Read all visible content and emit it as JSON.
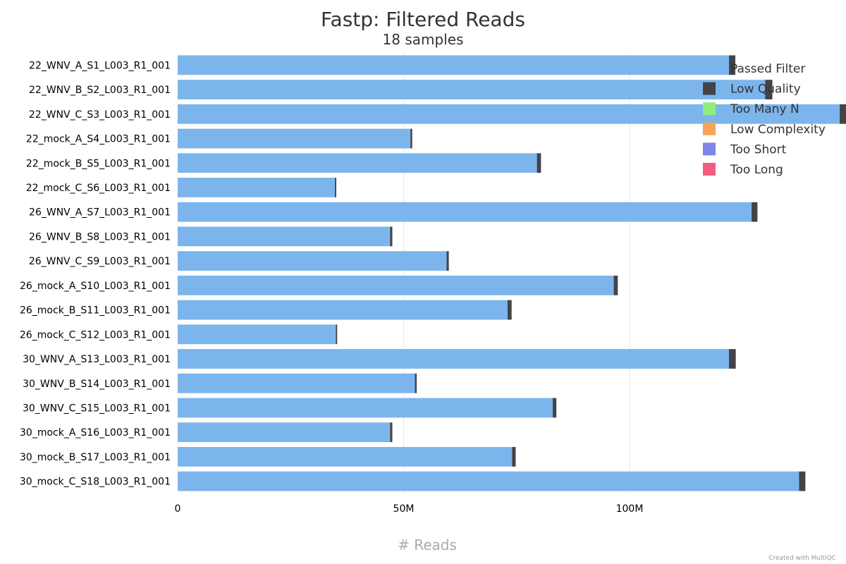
{
  "chart_data": {
    "type": "bar",
    "orientation": "horizontal",
    "stacked": true,
    "title": "Fastp: Filtered Reads",
    "subtitle": "18 samples",
    "xlabel": "# Reads",
    "ylabel": "",
    "xlim": [
      0,
      150000000
    ],
    "x_ticks": [
      {
        "value": 0,
        "label": "0"
      },
      {
        "value": 50000000,
        "label": "50M"
      },
      {
        "value": 100000000,
        "label": "100M"
      }
    ],
    "grid": true,
    "legend_position": "top-right",
    "categories": [
      "22_WNV_A_S1_L003_R1_001",
      "22_WNV_B_S2_L003_R1_001",
      "22_WNV_C_S3_L003_R1_001",
      "22_mock_A_S4_L003_R1_001",
      "22_mock_B_S5_L003_R1_001",
      "22_mock_C_S6_L003_R1_001",
      "26_WNV_A_S7_L003_R1_001",
      "26_WNV_B_S8_L003_R1_001",
      "26_WNV_C_S9_L003_R1_001",
      "26_mock_A_S10_L003_R1_001",
      "26_mock_B_S11_L003_R1_001",
      "26_mock_C_S12_L003_R1_001",
      "30_WNV_A_S13_L003_R1_001",
      "30_WNV_B_S14_L003_R1_001",
      "30_WNV_C_S15_L003_R1_001",
      "30_mock_A_S16_L003_R1_001",
      "30_mock_B_S17_L003_R1_001",
      "30_mock_C_S18_L003_R1_001"
    ],
    "series": [
      {
        "name": "Passed Filter",
        "color": "#7cb5ec",
        "values": [
          122000000,
          130000000,
          146500000,
          51500000,
          79500000,
          34800000,
          127000000,
          47000000,
          59500000,
          96500000,
          73000000,
          35000000,
          122000000,
          52500000,
          83000000,
          47000000,
          74000000,
          137500000
        ]
      },
      {
        "name": "Low Quality",
        "color": "#434348",
        "values": [
          1400000,
          1600000,
          1800000,
          400000,
          900000,
          300000,
          1300000,
          500000,
          500000,
          900000,
          900000,
          300000,
          1500000,
          400000,
          800000,
          500000,
          800000,
          1400000
        ]
      },
      {
        "name": "Too Many N",
        "color": "#90ed7d",
        "values": [
          0,
          0,
          0,
          0,
          0,
          0,
          0,
          0,
          0,
          0,
          0,
          0,
          0,
          0,
          0,
          0,
          0,
          0
        ]
      },
      {
        "name": "Low Complexity",
        "color": "#f7a35c",
        "values": [
          0,
          0,
          0,
          0,
          0,
          0,
          0,
          0,
          0,
          0,
          0,
          0,
          0,
          0,
          0,
          0,
          0,
          0
        ]
      },
      {
        "name": "Too Short",
        "color": "#8085e9",
        "values": [
          0,
          0,
          0,
          0,
          0,
          0,
          0,
          0,
          0,
          0,
          0,
          0,
          0,
          0,
          0,
          0,
          0,
          0
        ]
      },
      {
        "name": "Too Long",
        "color": "#f15c80",
        "values": [
          0,
          0,
          0,
          0,
          0,
          0,
          0,
          0,
          0,
          0,
          0,
          0,
          0,
          0,
          0,
          0,
          0,
          0
        ]
      }
    ]
  },
  "credit": "Created with MultiQC"
}
